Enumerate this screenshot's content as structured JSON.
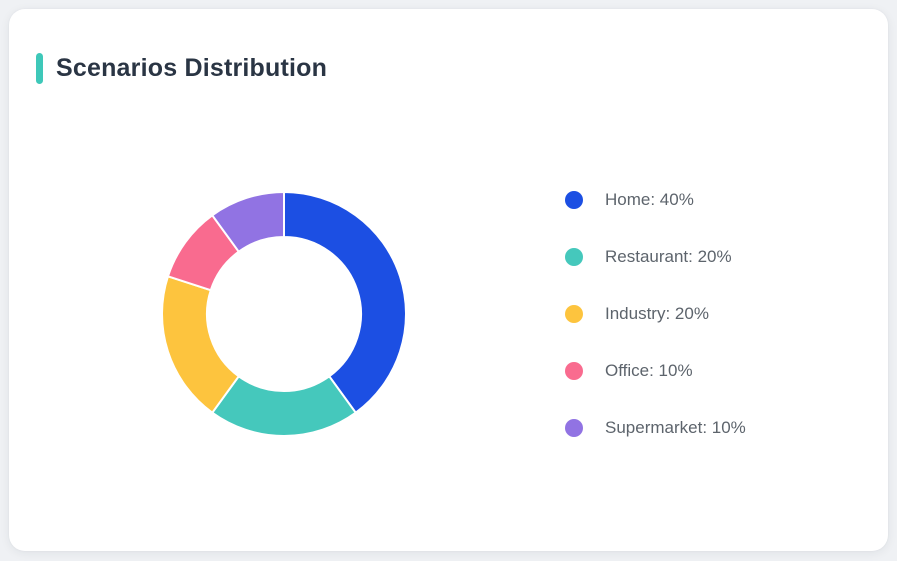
{
  "card": {
    "title": "Scenarios Distribution"
  },
  "theme": {
    "page_bg": "#eff1f4",
    "card_bg": "#ffffff",
    "accent": "#3ec8b9",
    "title_color": "#2a3544",
    "legend_text_color": "#5d646c",
    "slice_border_color": "#ffffff"
  },
  "chart_data": {
    "type": "pie",
    "variant": "donut",
    "title": "Scenarios Distribution",
    "start_angle_deg": -90,
    "direction": "clockwise",
    "inner_radius_ratio": 0.63,
    "legend_position": "right",
    "unit": "%",
    "labels": [
      "Home",
      "Restaurant",
      "Industry",
      "Office",
      "Supermarket"
    ],
    "values": [
      40,
      20,
      20,
      10,
      10
    ],
    "colors": [
      "#1c4fe3",
      "#45c8bc",
      "#fdc43e",
      "#f96b8f",
      "#9173e3"
    ],
    "legend_labels": [
      "Home: 40%",
      "Restaurant: 20%",
      "Industry: 20%",
      "Office: 10%",
      "Supermarket: 10%"
    ]
  }
}
